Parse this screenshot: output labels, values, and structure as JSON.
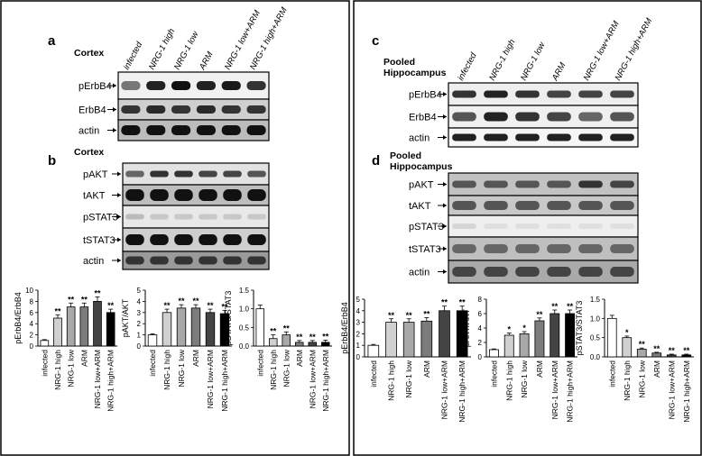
{
  "panels": {
    "a": {
      "letter": "a",
      "tissue": "Cortex",
      "blots": [
        "pErbB4",
        "ErbB4",
        "actin"
      ]
    },
    "b": {
      "letter": "b",
      "tissue": "Cortex",
      "blots": [
        "pAKT",
        "tAKT",
        "pSTAT3",
        "tSTAT3",
        "actin"
      ]
    },
    "c": {
      "letter": "c",
      "tissue_line1": "Pooled",
      "tissue_line2": "Hippocampus",
      "blots": [
        "pErbB4",
        "ErbB4",
        "actin"
      ]
    },
    "d": {
      "letter": "d",
      "tissue_line1": "Pooled",
      "tissue_line2": "Hippocampus",
      "blots": [
        "pAKT",
        "tAKT",
        "pSTAT3",
        "tSTAT3",
        "actin"
      ]
    }
  },
  "lanes": [
    "infected",
    "NRG-1 high",
    "NRG-1 low",
    "ARM",
    "NRG-1 low+ARM",
    "NRG-1 high+ARM"
  ],
  "colors": {
    "bars": [
      "#ffffff",
      "#d0d0d0",
      "#a8a8a8",
      "#7c7c7c",
      "#444444",
      "#000000"
    ]
  },
  "chart_data": [
    {
      "type": "bar",
      "group": "left",
      "categories": [
        "infected",
        "NRG-1 high",
        "NRG-1 low",
        "ARM",
        "NRG-1 low+ARM",
        "NRG-1 high+ARM"
      ],
      "values": [
        1,
        5,
        7,
        7,
        8,
        6
      ],
      "errors": [
        0.15,
        0.6,
        0.7,
        0.7,
        0.8,
        0.6
      ],
      "sig": [
        "",
        "**",
        "**",
        "**",
        "**",
        "**"
      ],
      "ylabel": "pErbB4/ErbB4",
      "ylim": [
        0,
        10
      ],
      "yticks": [
        "0",
        "2",
        "4",
        "6",
        "8",
        "10"
      ]
    },
    {
      "type": "bar",
      "group": "left",
      "categories": [
        "infected",
        "NRG-1 high",
        "NRG-1 low",
        "ARM",
        "NRG-1 low+ARM",
        "NRG-1 high+ARM"
      ],
      "values": [
        1,
        3,
        3.4,
        3.4,
        3,
        2.9
      ],
      "errors": [
        0.1,
        0.3,
        0.3,
        0.3,
        0.3,
        0.3
      ],
      "sig": [
        "",
        "**",
        "**",
        "**",
        "**",
        "**"
      ],
      "ylabel": "pAKT/AKT",
      "ylim": [
        0,
        5
      ],
      "yticks": [
        "0",
        "1",
        "2",
        "3",
        "4",
        "5"
      ]
    },
    {
      "type": "bar",
      "group": "left",
      "categories": [
        "infected",
        "NRG-1 high",
        "NRG-1 low",
        "ARM",
        "NRG-1 low+ARM",
        "NRG-1 high+ARM"
      ],
      "values": [
        1,
        0.2,
        0.3,
        0.1,
        0.1,
        0.1
      ],
      "errors": [
        0.1,
        0.1,
        0.08,
        0.05,
        0.05,
        0.06
      ],
      "sig": [
        "",
        "**",
        "**",
        "**",
        "**",
        "**"
      ],
      "ylabel": "pSTAT3/STAT3",
      "ylim": [
        0,
        1.5
      ],
      "yticks": [
        "0.0",
        "0.5",
        "1.0",
        "1.5"
      ]
    },
    {
      "type": "bar",
      "group": "right",
      "categories": [
        "infected",
        "NRG-1 high",
        "NRG-1 low",
        "ARM",
        "NRG-1 low+ARM",
        "NRG-1 high+ARM"
      ],
      "values": [
        1,
        3,
        3,
        3.1,
        4,
        4
      ],
      "errors": [
        0.08,
        0.3,
        0.3,
        0.3,
        0.4,
        0.4
      ],
      "sig": [
        "",
        "**",
        "**",
        "**",
        "**",
        "**"
      ],
      "ylabel": "pErbB4/ErbB4",
      "ylim": [
        0,
        5
      ],
      "yticks": [
        "0",
        "1",
        "2",
        "3",
        "4",
        "5"
      ]
    },
    {
      "type": "bar",
      "group": "right",
      "categories": [
        "infected",
        "NRG-1 high",
        "NRG-1 low",
        "ARM",
        "NRG-1 low+ARM",
        "NRG-1 high+ARM"
      ],
      "values": [
        1,
        3,
        3.2,
        5,
        6,
        6
      ],
      "errors": [
        0.1,
        0.3,
        0.3,
        0.4,
        0.5,
        0.5
      ],
      "sig": [
        "",
        "*",
        "*",
        "**",
        "**",
        "**"
      ],
      "ylabel": "pAKT/AKT",
      "ylim": [
        0,
        8
      ],
      "yticks": [
        "0",
        "2",
        "4",
        "6",
        "8"
      ]
    },
    {
      "type": "bar",
      "group": "right",
      "categories": [
        "infected",
        "NRG-1 high",
        "NRG-1 low",
        "ARM",
        "NRG-1 low+ARM",
        "NRG-1 high+ARM"
      ],
      "values": [
        1,
        0.5,
        0.2,
        0.1,
        0.05,
        0.05
      ],
      "errors": [
        0.08,
        0.04,
        0.03,
        0.02,
        0.02,
        0.02
      ],
      "sig": [
        "",
        "*",
        "**",
        "**",
        "**",
        "**"
      ],
      "ylabel": "pSTAT3/STAT3",
      "ylim": [
        0,
        1.5
      ],
      "yticks": [
        "0.0",
        "0.5",
        "1.0",
        "1.5"
      ]
    }
  ]
}
